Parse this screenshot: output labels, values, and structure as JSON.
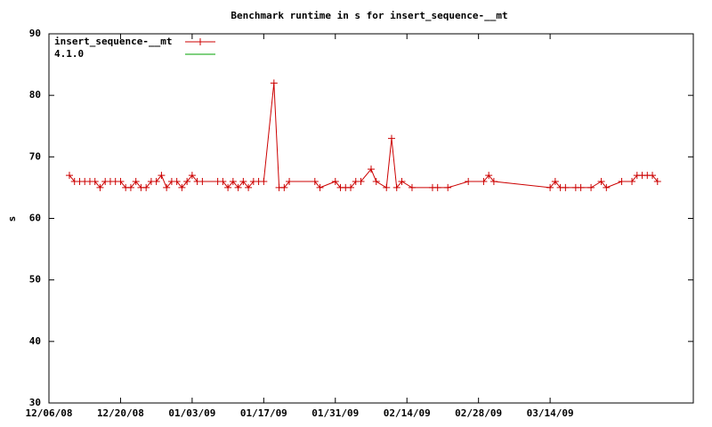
{
  "chart_data": {
    "type": "line",
    "title": "Benchmark runtime in s for insert_sequence-__mt",
    "y_label": "s",
    "legend": "top-left",
    "grid": false,
    "xlim": [
      "12/06/08",
      "04/11/09"
    ],
    "xticks": [
      "12/06/08",
      "12/20/08",
      "01/03/09",
      "01/17/09",
      "01/31/09",
      "02/14/09",
      "02/28/09",
      "03/14/09"
    ],
    "ylim": [
      30,
      90
    ],
    "yticks": [
      30,
      40,
      50,
      60,
      70,
      80,
      90
    ],
    "series": [
      {
        "name": "insert_sequence-__mt",
        "color": "#cc0000",
        "x": [
          "12/10/08",
          "12/11/08",
          "12/12/08",
          "12/13/08",
          "12/14/08",
          "12/15/08",
          "12/16/08",
          "12/17/08",
          "12/18/08",
          "12/19/08",
          "12/20/08",
          "12/21/08",
          "12/22/08",
          "12/23/08",
          "12/24/08",
          "12/25/08",
          "12/26/08",
          "12/27/08",
          "12/28/08",
          "12/29/08",
          "12/30/08",
          "12/31/08",
          "01/01/09",
          "01/02/09",
          "01/03/09",
          "01/04/09",
          "01/05/09",
          "01/08/09",
          "01/09/09",
          "01/10/09",
          "01/11/09",
          "01/12/09",
          "01/13/09",
          "01/14/09",
          "01/15/09",
          "01/16/09",
          "01/17/09",
          "01/19/09",
          "01/20/09",
          "01/21/09",
          "01/22/09",
          "01/27/09",
          "01/28/09",
          "01/31/09",
          "02/01/09",
          "02/02/09",
          "02/03/09",
          "02/04/09",
          "02/05/09",
          "02/07/09",
          "02/08/09",
          "02/10/09",
          "02/11/09",
          "02/12/09",
          "02/13/09",
          "02/15/09",
          "02/19/09",
          "02/20/09",
          "02/22/09",
          "02/26/09",
          "03/01/09",
          "03/02/09",
          "03/03/09",
          "03/14/09",
          "03/15/09",
          "03/16/09",
          "03/17/09",
          "03/19/09",
          "03/20/09",
          "03/22/09",
          "03/24/09",
          "03/25/09",
          "03/28/09",
          "03/30/09",
          "03/31/09",
          "04/01/09",
          "04/02/09",
          "04/03/09",
          "04/04/09"
        ],
        "values": [
          67,
          66,
          66,
          66,
          66,
          66,
          65,
          66,
          66,
          66,
          66,
          65,
          65,
          66,
          65,
          65,
          66,
          66,
          67,
          65,
          66,
          66,
          65,
          66,
          67,
          66,
          66,
          66,
          66,
          65,
          66,
          65,
          66,
          65,
          66,
          66,
          66,
          82,
          65,
          65,
          66,
          66,
          65,
          66,
          65,
          65,
          65,
          66,
          66,
          68,
          66,
          65,
          73,
          65,
          66,
          65,
          65,
          65,
          65,
          66,
          66,
          67,
          66,
          65,
          66,
          65,
          65,
          65,
          65,
          65,
          66,
          65,
          66,
          66,
          67,
          67,
          67,
          67,
          66
        ]
      },
      {
        "name": "4.1.0",
        "color": "#00a000",
        "x": [],
        "values": []
      }
    ]
  }
}
